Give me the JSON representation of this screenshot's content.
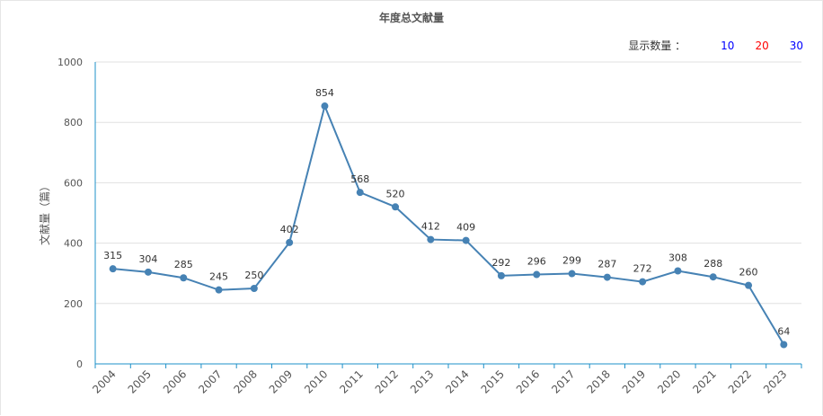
{
  "title": "年度总文献量",
  "display_count": {
    "label": "显示数量 ：",
    "options": [
      {
        "label": "10",
        "color": "#0000ff"
      },
      {
        "label": "20",
        "color": "#ff0000"
      },
      {
        "label": "30",
        "color": "#0000ff"
      }
    ]
  },
  "chart_data": {
    "type": "line",
    "title": "年度总文献量",
    "xlabel": "",
    "ylabel": "文献量（篇）",
    "x": [
      "2004",
      "2005",
      "2006",
      "2007",
      "2008",
      "2009",
      "2010",
      "2011",
      "2012",
      "2013",
      "2014",
      "2015",
      "2016",
      "2017",
      "2018",
      "2019",
      "2020",
      "2021",
      "2022",
      "2023"
    ],
    "values": [
      315,
      304,
      285,
      245,
      250,
      402,
      854,
      568,
      520,
      412,
      409,
      292,
      296,
      299,
      287,
      272,
      308,
      288,
      260,
      64
    ],
    "ylim": [
      0,
      1000
    ],
    "yticks": [
      0,
      200,
      400,
      600,
      800,
      1000
    ],
    "grid": true,
    "line_color": "#4682b4",
    "axis_color": "#1e90c8"
  }
}
